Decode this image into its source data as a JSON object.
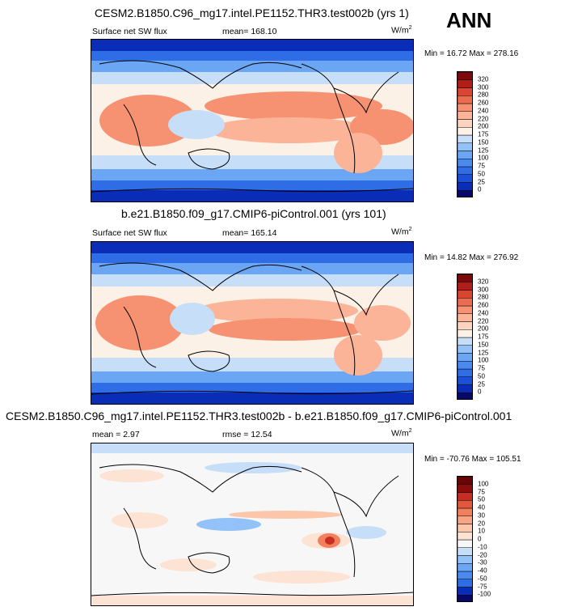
{
  "season_label": "ANN",
  "panels": [
    {
      "title": "CESM2.B1850.C96_mg17.intel.PE1152.THR3.test002b (yrs 1)",
      "left_label": "Surface net SW flux",
      "center_label": "mean= 168.10",
      "units": "W/m",
      "units_sup": "2",
      "minmax": "Min =  16.72 Max = 278.16",
      "colorbar_ticks": [
        "320",
        "300",
        "280",
        "260",
        "240",
        "220",
        "200",
        "175",
        "150",
        "125",
        "100",
        "75",
        "50",
        "25",
        "0"
      ]
    },
    {
      "title": "b.e21.B1850.f09_g17.CMIP6-piControl.001 (yrs 101)",
      "left_label": "Surface net SW flux",
      "center_label": "mean= 165.14",
      "units": "W/m",
      "units_sup": "2",
      "minmax": "Min =  14.82 Max = 276.92",
      "colorbar_ticks": [
        "320",
        "300",
        "280",
        "260",
        "240",
        "220",
        "200",
        "175",
        "150",
        "125",
        "100",
        "75",
        "50",
        "25",
        "0"
      ]
    },
    {
      "title": "CESM2.B1850.C96_mg17.intel.PE1152.THR3.test002b - b.e21.B1850.f09_g17.CMIP6-piControl.001",
      "left_label": "mean =   2.97",
      "center_label": "rmse =  12.54",
      "units": "W/m",
      "units_sup": "2",
      "minmax": "Min = -70.76 Max = 105.51",
      "colorbar_ticks": [
        "100",
        "75",
        "50",
        "40",
        "30",
        "20",
        "10",
        "0",
        "-10",
        "-20",
        "-30",
        "-40",
        "-50",
        "-75",
        "-100"
      ]
    }
  ],
  "colors": {
    "abs_scale": [
      "#08086b",
      "#0a2db8",
      "#1c4fd8",
      "#2f6de6",
      "#4a8aee",
      "#6aa6f3",
      "#93c2f8",
      "#c6def8",
      "#fbf1e6",
      "#fcd4bd",
      "#fbb497",
      "#f69272",
      "#ec6c4f",
      "#d94530",
      "#b01e17",
      "#7d0a0a"
    ],
    "diff_scale": [
      "#08086b",
      "#0a2db8",
      "#2f6de6",
      "#4a8aee",
      "#6aa6f3",
      "#93c2f8",
      "#c6def8",
      "#f7f7f7",
      "#fde3d3",
      "#fcc6ab",
      "#f9a584",
      "#f2805e",
      "#e3573c",
      "#c72e22",
      "#8c0c0c",
      "#6b0505"
    ]
  }
}
